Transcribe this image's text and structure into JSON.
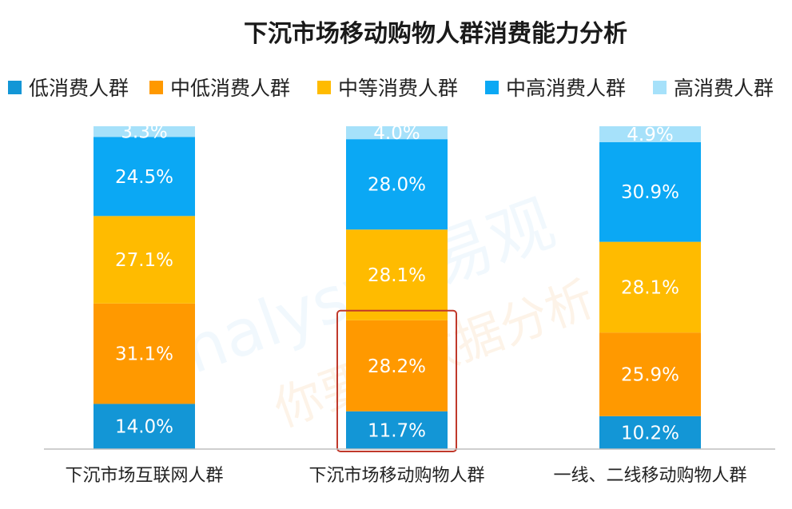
{
  "chart_data": {
    "type": "bar",
    "stacked": true,
    "percent": true,
    "title": "下沉市场移动购物人群消费能力分析",
    "categories": [
      "下沉市场互联网人群",
      "下沉市场移动购物人群",
      "一线、二线移动购物人群"
    ],
    "series": [
      {
        "name": "低消费人群",
        "color": "#1396d6",
        "values": [
          14.0,
          11.7,
          10.2
        ],
        "labels": [
          "14.0%",
          "11.7%",
          "10.2%"
        ]
      },
      {
        "name": "中低消费人群",
        "color": "#ff9900",
        "values": [
          31.1,
          28.2,
          25.9
        ],
        "labels": [
          "31.1%",
          "28.2%",
          "25.9%"
        ]
      },
      {
        "name": "中等消费人群",
        "color": "#ffbb00",
        "values": [
          27.1,
          28.1,
          28.1
        ],
        "labels": [
          "27.1%",
          "28.1%",
          "28.1%"
        ]
      },
      {
        "name": "中高消费人群",
        "color": "#0ba8f4",
        "values": [
          24.5,
          28.0,
          30.9
        ],
        "labels": [
          "24.5%",
          "28.0%",
          "30.9%"
        ]
      },
      {
        "name": "高消费人群",
        "color": "#a6e1fa",
        "values": [
          3.3,
          4.0,
          4.9
        ],
        "labels": [
          "3.3%",
          "4.0%",
          "4.9%"
        ]
      }
    ],
    "ylim": [
      0,
      100
    ],
    "legend": "top",
    "grid": false,
    "highlight": {
      "category_index": 1,
      "series_index": [
        0,
        1
      ],
      "color": "#c0392b"
    }
  },
  "watermark": {
    "brand": "analysys 易观",
    "slogan": "你要的数据分析"
  }
}
